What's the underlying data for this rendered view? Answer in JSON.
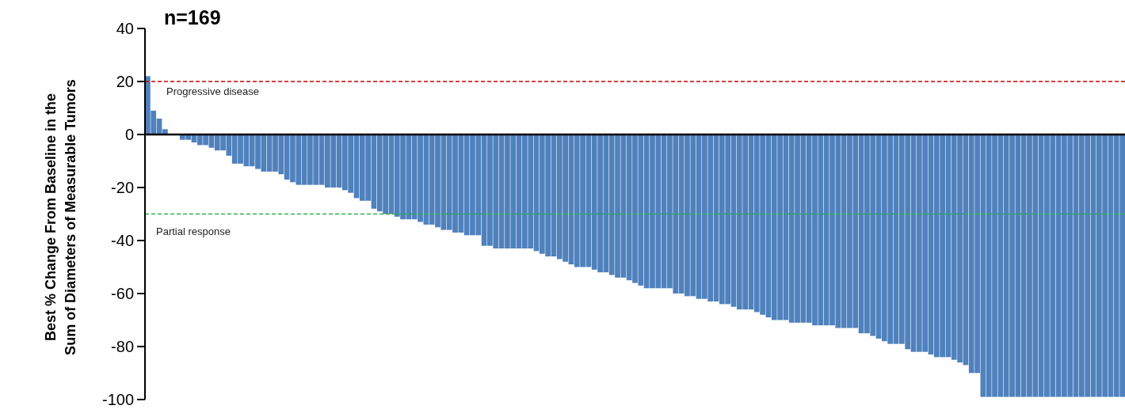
{
  "chart_data": {
    "type": "bar",
    "title": "n=169",
    "ylabel": "Best % Change From Baseline in the\nSum of Diameters of Measurable Tumors",
    "categories": [
      null,
      null,
      null,
      null,
      null,
      null,
      null,
      null,
      null,
      null,
      null,
      null,
      null,
      null,
      null,
      null,
      null,
      null,
      null,
      null,
      null,
      null,
      null,
      null,
      null,
      null,
      null,
      null,
      null,
      null,
      null,
      null,
      null,
      null,
      null,
      null,
      null,
      null,
      null,
      null,
      null,
      null,
      null,
      null,
      null,
      null,
      null,
      null,
      null,
      null,
      null,
      null,
      null,
      null,
      null,
      null,
      null,
      null,
      null,
      null,
      null,
      null,
      null,
      null,
      null,
      null,
      null,
      null,
      null,
      null,
      null,
      null,
      null,
      null,
      null,
      null,
      null,
      null,
      null,
      null,
      null,
      null,
      null,
      null,
      null,
      null,
      null,
      null,
      null,
      null,
      null,
      null,
      null,
      null,
      null,
      null,
      null,
      null,
      null,
      null,
      null,
      null,
      null,
      null,
      null,
      null,
      null,
      null,
      null,
      null,
      null,
      null,
      null,
      null,
      null,
      null,
      null,
      null,
      null,
      null,
      null,
      null,
      null,
      null,
      null,
      null,
      null,
      null,
      null,
      null,
      null,
      null,
      null,
      null,
      null,
      null,
      null,
      null,
      null,
      null,
      null,
      null,
      null,
      null,
      null,
      null,
      null,
      null,
      null,
      null,
      null,
      null,
      null,
      null,
      null,
      null,
      null,
      null,
      null,
      null,
      null,
      null,
      null,
      null,
      null,
      null,
      null,
      null,
      null
    ],
    "values": [
      22,
      9,
      6,
      2,
      0,
      0,
      -2,
      -2,
      -3,
      -4,
      -4,
      -5,
      -6,
      -6,
      -8,
      -11,
      -11,
      -12,
      -12,
      -13,
      -14,
      -14,
      -14,
      -15,
      -17,
      -18,
      -19,
      -19,
      -19,
      -19,
      -19,
      -20,
      -20,
      -20,
      -21,
      -22,
      -24,
      -25,
      -25,
      -28,
      -29,
      -30,
      -30,
      -31,
      -32,
      -32,
      -32,
      -33,
      -34,
      -34,
      -35,
      -36,
      -36,
      -37,
      -37,
      -38,
      -38,
      -38,
      -42,
      -42,
      -43,
      -43,
      -43,
      -43,
      -43,
      -43,
      -43,
      -44,
      -45,
      -46,
      -46,
      -47,
      -48,
      -49,
      -50,
      -50,
      -50,
      -51,
      -52,
      -52,
      -53,
      -54,
      -54,
      -55,
      -56,
      -57,
      -58,
      -58,
      -58,
      -58,
      -58,
      -60,
      -60,
      -61,
      -61,
      -62,
      -62,
      -63,
      -63,
      -64,
      -64,
      -65,
      -66,
      -66,
      -66,
      -67,
      -68,
      -69,
      -70,
      -70,
      -70,
      -71,
      -71,
      -71,
      -71,
      -72,
      -72,
      -72,
      -72,
      -73,
      -73,
      -73,
      -73,
      -75,
      -75,
      -76,
      -77,
      -78,
      -79,
      -79,
      -79,
      -81,
      -82,
      -82,
      -82,
      -83,
      -84,
      -84,
      -84,
      -85,
      -86,
      -87,
      -90,
      -90,
      -99,
      -99,
      -99,
      -99,
      -99,
      -99,
      -99,
      -99,
      -99,
      -99,
      -99,
      -99,
      -99,
      -99,
      -99,
      -99,
      -99,
      -99,
      -99,
      -99,
      -99,
      -99,
      -99,
      -99,
      -99
    ],
    "color": "#4f81bd",
    "ylim": [
      -100,
      40
    ],
    "yticks": [
      -100,
      -80,
      -60,
      -40,
      -20,
      0,
      20,
      40
    ],
    "ref_lines": [
      {
        "axis": "y",
        "value": 20,
        "label": "Progressive disease",
        "color": "#cc0000",
        "line_style": "dashed"
      },
      {
        "axis": "y",
        "value": -30,
        "label": "Partial response",
        "color": "#2db34a",
        "line_style": "dashed"
      }
    ]
  }
}
